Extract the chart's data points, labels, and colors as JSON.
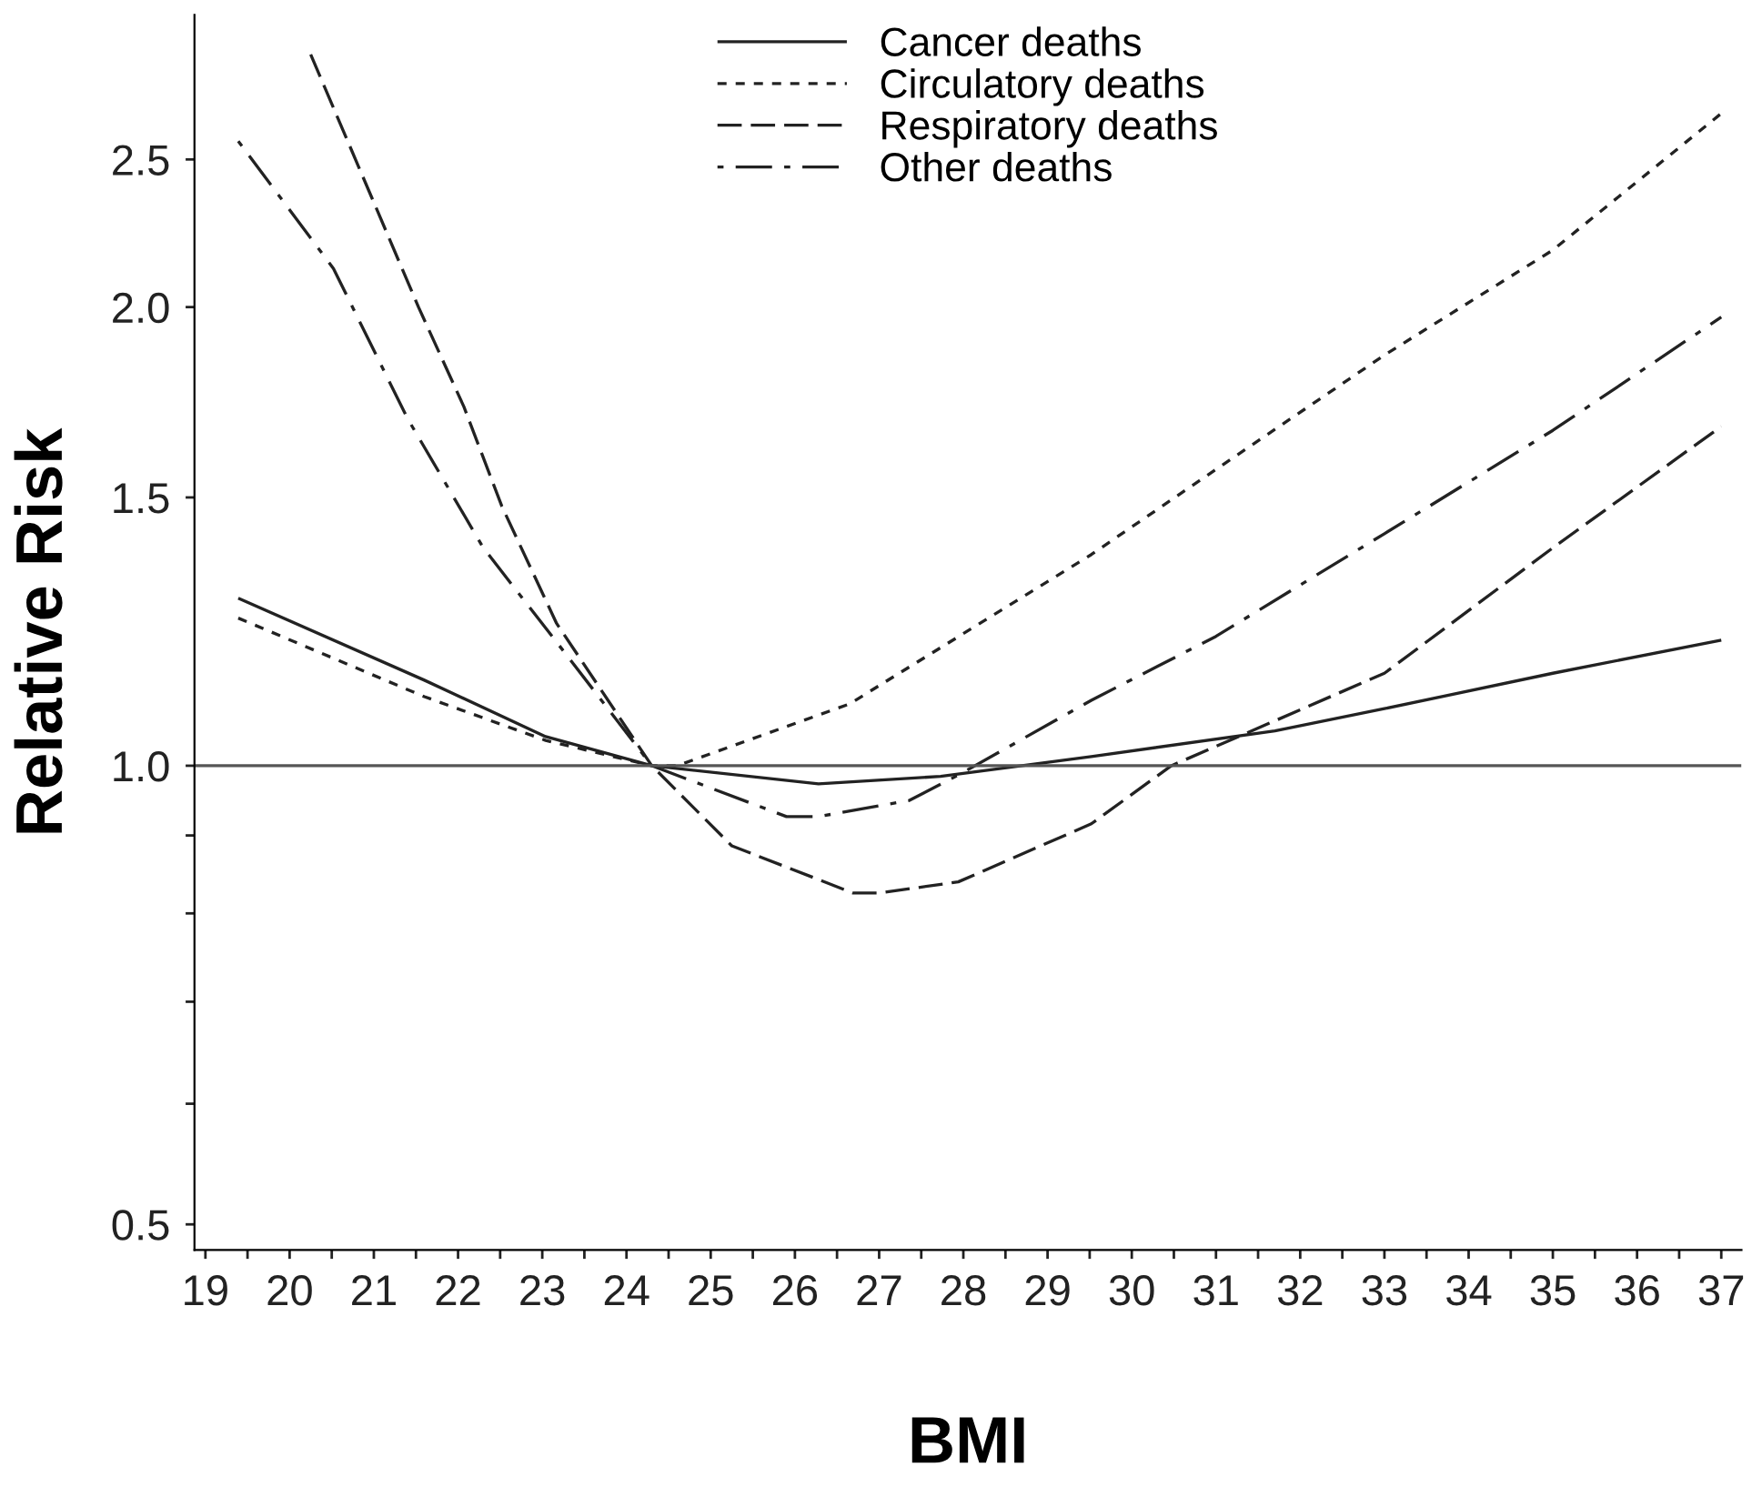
{
  "chart_data": {
    "type": "line",
    "xlabel": "BMI",
    "ylabel": "Relative Risk",
    "log": "y",
    "grid": false,
    "legend": "top",
    "marker": "none",
    "xlim": [
      18.87,
      37.24
    ],
    "ylim": [
      0.481,
      3.11
    ],
    "xticks": [
      19,
      {
        "value": 19.5,
        "label": null
      },
      20,
      {
        "value": 20.5,
        "label": null
      },
      21,
      {
        "value": 21.5,
        "label": null
      },
      22,
      {
        "value": 22.5,
        "label": null
      },
      23,
      {
        "value": 23.5,
        "label": null
      },
      24,
      {
        "value": 24.5,
        "label": null
      },
      25,
      {
        "value": 25.5,
        "label": null
      },
      26,
      {
        "value": 26.5,
        "label": null
      },
      27,
      {
        "value": 27.5,
        "label": null
      },
      28,
      {
        "value": 28.5,
        "label": null
      },
      29,
      {
        "value": 29.5,
        "label": null
      },
      30,
      {
        "value": 30.5,
        "label": null
      },
      31,
      {
        "value": 31.5,
        "label": null
      },
      32,
      {
        "value": 32.5,
        "label": null
      },
      33,
      {
        "value": 33.5,
        "label": null
      },
      34,
      {
        "value": 34.5,
        "label": null
      },
      35,
      {
        "value": 35.5,
        "label": null
      },
      36,
      {
        "value": 36.5,
        "label": null
      },
      37
    ],
    "yticks": [
      {
        "value": 0.5,
        "label": "0.5"
      },
      {
        "value": 0.6,
        "label": null
      },
      {
        "value": 0.7,
        "label": null
      },
      {
        "value": 0.8,
        "label": null
      },
      {
        "value": 0.9,
        "label": null
      },
      {
        "value": 1,
        "label": "1.0"
      },
      {
        "value": 1.5,
        "label": "1.5"
      },
      {
        "value": 2,
        "label": "2.0"
      },
      {
        "value": 2.5,
        "label": "2.5"
      }
    ],
    "ref_lines": [
      {
        "axis": "y",
        "value": 1,
        "color": "#555555",
        "line_style": "solid"
      }
    ],
    "series": [
      {
        "name": "Cancer deaths",
        "color": "#222222",
        "line_style": "solid",
        "x": [
          19.39,
          21.6,
          23.04,
          24.3,
          26.28,
          27.73,
          29.52,
          31.7,
          33,
          35,
          37
        ],
        "values": [
          1.288,
          1.138,
          1.045,
          1.0,
          0.973,
          0.984,
          1.014,
          1.054,
          1.09,
          1.15,
          1.209
        ]
      },
      {
        "name": "Circulatory deaths",
        "color": "#222222",
        "line_style": "dashed",
        "x": [
          19.39,
          21.6,
          23.04,
          24.3,
          24.6,
          26.65,
          29.52,
          31,
          33,
          35,
          37
        ],
        "values": [
          1.25,
          1.11,
          1.039,
          1.0,
          1.0,
          1.098,
          1.376,
          1.565,
          1.86,
          2.18,
          2.68
        ]
      },
      {
        "name": "Respiratory deaths",
        "color": "#222222",
        "line_style": "longdash",
        "x": [
          20.25,
          21.53,
          22.07,
          22.52,
          23.17,
          24.3,
          25.25,
          26.69,
          27.0,
          27.94,
          29.52,
          30.47,
          33,
          35,
          37
        ],
        "values": [
          2.93,
          2.0,
          1.72,
          1.48,
          1.24,
          1.0,
          0.886,
          0.825,
          0.825,
          0.839,
          0.916,
          1.0,
          1.15,
          1.39,
          1.67
        ]
      },
      {
        "name": "Other deaths",
        "color": "#222222",
        "line_style": "dashdot",
        "x": [
          19.39,
          20.52,
          21.4,
          22.3,
          23.3,
          24.3,
          25.9,
          26.28,
          27.36,
          27.94,
          29.52,
          31,
          33,
          35,
          37
        ],
        "values": [
          2.57,
          2.12,
          1.69,
          1.39,
          1.18,
          1.0,
          0.926,
          0.926,
          0.949,
          0.986,
          1.104,
          1.216,
          1.42,
          1.66,
          1.97
        ]
      }
    ]
  }
}
